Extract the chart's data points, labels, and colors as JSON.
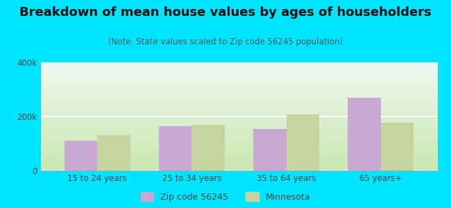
{
  "title": "Breakdown of mean house values by ages of householders",
  "subtitle": "(Note: State values scaled to Zip code 56245 population)",
  "categories": [
    "15 to 24 years",
    "25 to 34 years",
    "35 to 64 years",
    "65 years+"
  ],
  "zip_values": [
    110000,
    163000,
    155000,
    268000
  ],
  "state_values": [
    130000,
    168000,
    208000,
    178000
  ],
  "zip_color": "#c9a8d4",
  "state_color": "#c8d4a0",
  "background_outer": "#00e5ff",
  "gradient_bottom": "#c8e8b0",
  "gradient_top": "#f0f8f0",
  "ylim": [
    0,
    400000
  ],
  "ytick_labels": [
    "0",
    "200k",
    "400k"
  ],
  "legend_zip": "Zip code 56245",
  "legend_state": "Minnesota",
  "bar_width": 0.35,
  "title_fontsize": 13,
  "subtitle_fontsize": 8.5,
  "tick_fontsize": 8.5,
  "legend_fontsize": 9
}
